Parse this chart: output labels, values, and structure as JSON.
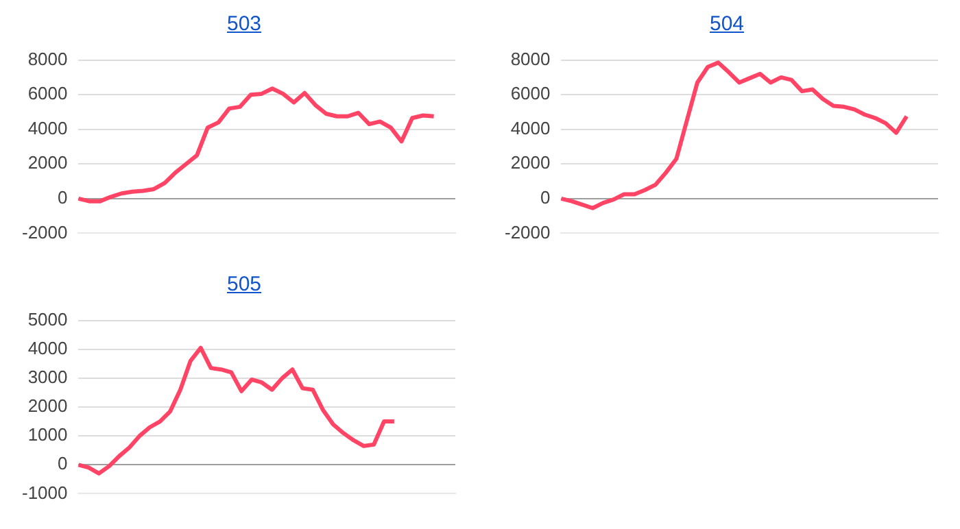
{
  "chart_data": [
    {
      "type": "line",
      "title": "503",
      "categories": [
        null,
        null,
        null,
        null,
        null,
        null,
        null,
        null,
        null,
        null,
        null,
        null,
        null,
        null,
        null,
        null,
        null,
        null,
        null,
        null,
        null,
        null,
        null,
        null,
        null,
        null,
        null,
        null,
        null,
        null,
        null,
        null,
        null,
        null,
        null,
        null
      ],
      "series": [
        {
          "color": "#ff4466",
          "values": [
            0,
            -150,
            -150,
            100,
            300,
            400,
            450,
            550,
            900,
            1500,
            2000,
            2500,
            4100,
            4400,
            5200,
            5300,
            6000,
            6050,
            6350,
            6050,
            5550,
            6100,
            5400,
            4900,
            4750,
            4750,
            4950,
            4300,
            4450,
            4100,
            3300,
            4650,
            4800,
            4750,
            null,
            null
          ]
        }
      ],
      "ylim": [
        -2000,
        8000
      ],
      "yticks": [
        -2000,
        0,
        2000,
        4000,
        6000,
        8000
      ],
      "grid": "y",
      "tick_labels": "y",
      "marker": "none",
      "line_style": "solid",
      "legend": false
    },
    {
      "type": "line",
      "title": "504",
      "categories": [
        null,
        null,
        null,
        null,
        null,
        null,
        null,
        null,
        null,
        null,
        null,
        null,
        null,
        null,
        null,
        null,
        null,
        null,
        null,
        null,
        null,
        null,
        null,
        null,
        null,
        null,
        null,
        null,
        null,
        null,
        null,
        null,
        null,
        null,
        null,
        null,
        null
      ],
      "series": [
        {
          "color": "#ff4466",
          "values": [
            0,
            -150,
            -350,
            -550,
            -250,
            -50,
            250,
            250,
            500,
            800,
            1500,
            2300,
            4500,
            6700,
            7600,
            7850,
            7300,
            6700,
            6950,
            7200,
            6700,
            7000,
            6850,
            6200,
            6300,
            5750,
            5350,
            5300,
            5150,
            4850,
            4650,
            4350,
            3800,
            4750,
            null,
            null,
            null
          ]
        }
      ],
      "ylim": [
        -2000,
        8000
      ],
      "yticks": [
        -2000,
        0,
        2000,
        4000,
        6000,
        8000
      ],
      "grid": "y",
      "tick_labels": "y",
      "marker": "none",
      "line_style": "solid",
      "legend": false
    },
    {
      "type": "line",
      "title": "505",
      "categories": [
        null,
        null,
        null,
        null,
        null,
        null,
        null,
        null,
        null,
        null,
        null,
        null,
        null,
        null,
        null,
        null,
        null,
        null,
        null,
        null,
        null,
        null,
        null,
        null,
        null,
        null,
        null,
        null,
        null,
        null,
        null,
        null,
        null,
        null,
        null,
        null,
        null,
        null
      ],
      "series": [
        {
          "color": "#ff4466",
          "values": [
            0,
            -100,
            -300,
            -50,
            300,
            600,
            1000,
            1300,
            1500,
            1850,
            2600,
            3600,
            4050,
            3350,
            3300,
            3200,
            2550,
            2950,
            2850,
            2600,
            3000,
            3300,
            2650,
            2600,
            1900,
            1400,
            1100,
            850,
            650,
            700,
            1500,
            1500,
            null,
            null,
            null,
            null,
            null,
            null
          ]
        }
      ],
      "ylim": [
        -1000,
        5000
      ],
      "yticks": [
        -1000,
        0,
        1000,
        2000,
        3000,
        4000,
        5000
      ],
      "grid": "y",
      "tick_labels": "y",
      "marker": "none",
      "line_style": "solid",
      "legend": false
    }
  ]
}
